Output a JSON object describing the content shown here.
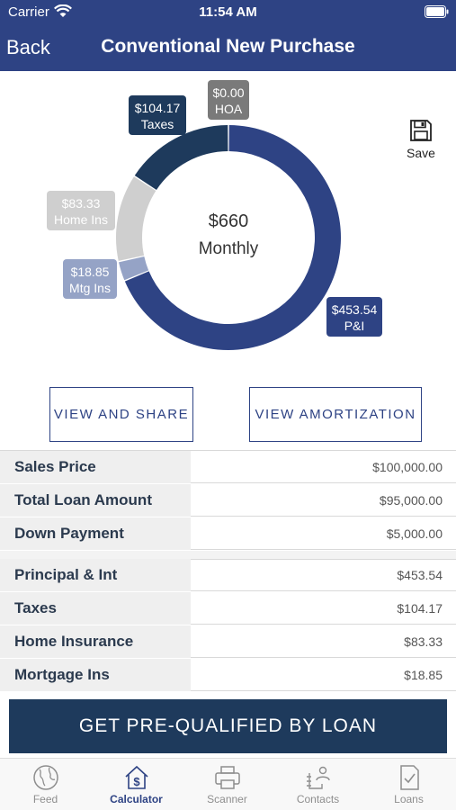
{
  "status_bar": {
    "carrier": "Carrier",
    "time": "11:54 AM"
  },
  "header": {
    "back_label": "Back",
    "title": "Conventional New Purchase"
  },
  "chart": {
    "center_amount": "$660",
    "center_label": "Monthly",
    "save_label": "Save",
    "colors": {
      "pi": "#2e4384",
      "taxes": "#1e3a5c",
      "hoa": "#7a7a7a",
      "home_ins": "#cfcfcf",
      "mtg_ins": "#95a3c6"
    }
  },
  "chart_data": {
    "type": "pie",
    "categories": [
      "P&I",
      "Mtg Ins",
      "Home Ins",
      "Taxes",
      "HOA"
    ],
    "values": [
      453.54,
      18.85,
      83.33,
      104.17,
      0.0
    ],
    "labels": [
      "$453.54",
      "$18.85",
      "$83.33",
      "$104.17",
      "$0.00"
    ],
    "center_text": "$660 Monthly"
  },
  "actions": {
    "share": "VIEW AND SHARE",
    "amortization": "VIEW AMORTIZATION"
  },
  "summary": [
    {
      "label": "Sales Price",
      "value": "$100,000.00"
    },
    {
      "label": "Total Loan Amount",
      "value": "$95,000.00"
    },
    {
      "label": "Down Payment",
      "value": "$5,000.00"
    }
  ],
  "payment": [
    {
      "label": "Principal & Int",
      "value": "$453.54"
    },
    {
      "label": "Taxes",
      "value": "$104.17"
    },
    {
      "label": "Home Insurance",
      "value": "$83.33"
    },
    {
      "label": "Mortgage Ins",
      "value": "$18.85"
    }
  ],
  "cta": {
    "label": "GET PRE-QUALIFIED BY LOAN"
  },
  "tabs": [
    {
      "label": "Feed",
      "icon": "globe-icon"
    },
    {
      "label": "Calculator",
      "icon": "house-dollar-icon"
    },
    {
      "label": "Scanner",
      "icon": "printer-icon"
    },
    {
      "label": "Contacts",
      "icon": "contacts-icon"
    },
    {
      "label": "Loans",
      "icon": "checklist-icon"
    }
  ]
}
